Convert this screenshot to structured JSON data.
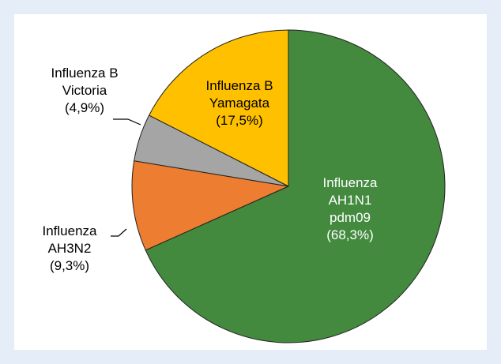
{
  "chart_data": {
    "type": "pie",
    "categories": [
      "Influenza\nAH1N1\npdm09",
      "Influenza\nAH3N2",
      "Influenza B\nVictoria",
      "Influenza B\nYamagata"
    ],
    "values": [
      68.3,
      9.3,
      4.9,
      17.5
    ],
    "value_labels": [
      "(68,3%)",
      "(9,3%)",
      "(4,9%)",
      "(17,5%)"
    ],
    "colors": [
      "#438a3f",
      "#ed7d31",
      "#a5a5a5",
      "#ffc000"
    ]
  }
}
